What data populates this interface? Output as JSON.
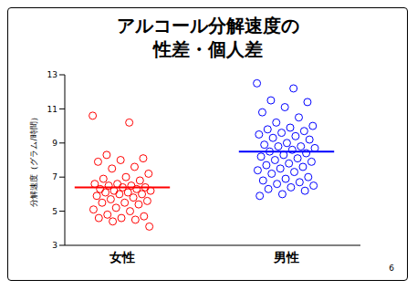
{
  "chart_data": {
    "type": "strip",
    "title": "アルコール分解速度の\n性差・個人差",
    "y_label": "分解速度（グラム/時間）",
    "categories": [
      "女性",
      "男性"
    ],
    "colors": [
      "#ff0000",
      "#0000ff"
    ],
    "values": [
      [
        10.6,
        10.2,
        8.3,
        8.1,
        8.0,
        7.9,
        7.6,
        7.5,
        7.2,
        7.0,
        6.9,
        6.8,
        6.6,
        6.6,
        6.5,
        6.5,
        6.4,
        6.4,
        6.3,
        6.3,
        6.2,
        6.2,
        6.1,
        6.1,
        6.0,
        6.0,
        5.9,
        5.8,
        5.7,
        5.6,
        5.5,
        5.5,
        5.4,
        5.2,
        5.1,
        5.0,
        4.8,
        4.7,
        4.6,
        4.6,
        4.5,
        4.4,
        4.1
      ],
      [
        12.5,
        12.2,
        11.5,
        11.4,
        11.1,
        10.8,
        10.5,
        10.2,
        10.0,
        9.9,
        9.8,
        9.7,
        9.6,
        9.5,
        9.4,
        9.3,
        9.2,
        9.0,
        8.9,
        8.8,
        8.8,
        8.7,
        8.6,
        8.5,
        8.4,
        8.3,
        8.2,
        8.1,
        8.0,
        7.9,
        7.8,
        7.7,
        7.6,
        7.5,
        7.4,
        7.3,
        7.2,
        7.0,
        6.9,
        6.8,
        6.7,
        6.6,
        6.5,
        6.4,
        6.3,
        6.2,
        6.0,
        5.9
      ]
    ],
    "means": [
      6.4,
      8.5
    ],
    "marker": "open_circle",
    "ylim": [
      3,
      13
    ],
    "yticks": [
      3,
      5,
      7,
      9,
      11,
      13
    ],
    "grid": false
  },
  "page_number": "6"
}
